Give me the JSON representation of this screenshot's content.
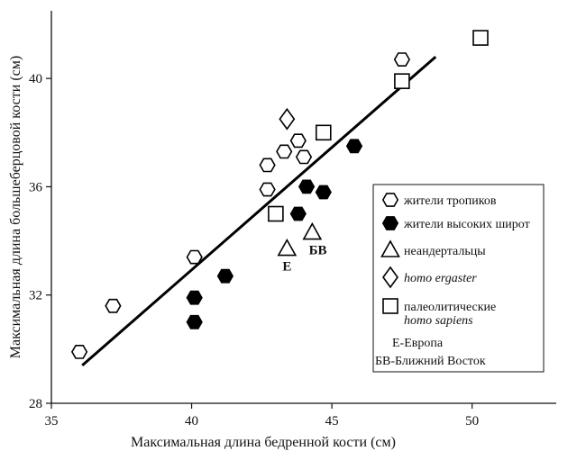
{
  "chart_data": {
    "type": "scatter",
    "xlabel": "Максимальная длина бедренной кости (см)",
    "ylabel": "Максимальная длина большеберцовой кости (см)",
    "xlim": [
      35,
      53
    ],
    "ylim": [
      28,
      42.5
    ],
    "x_ticks": [
      35,
      40,
      45,
      50
    ],
    "y_ticks": [
      28,
      32,
      36,
      40
    ],
    "x_tick_labels": [
      "35",
      "40",
      "45",
      "50"
    ],
    "y_tick_labels": [
      "28",
      "32",
      "36",
      "40"
    ],
    "grid": false,
    "legend_position": "right",
    "series": [
      {
        "name": "жители тропиков",
        "marker": "hexagon-open",
        "points": [
          [
            36.0,
            29.9
          ],
          [
            37.2,
            31.6
          ],
          [
            40.1,
            33.4
          ],
          [
            42.7,
            35.9
          ],
          [
            42.7,
            36.8
          ],
          [
            43.3,
            37.3
          ],
          [
            43.8,
            37.7
          ],
          [
            44.0,
            37.1
          ],
          [
            47.5,
            40.7
          ]
        ]
      },
      {
        "name": "жители высоких широт",
        "marker": "hexagon-filled",
        "points": [
          [
            40.1,
            31.0
          ],
          [
            40.1,
            31.9
          ],
          [
            41.2,
            32.7
          ],
          [
            43.8,
            35.0
          ],
          [
            44.1,
            36.0
          ],
          [
            44.7,
            35.8
          ],
          [
            45.8,
            37.5
          ]
        ]
      },
      {
        "name": "неандертальцы",
        "marker": "triangle-open",
        "points": [
          [
            43.4,
            33.7
          ],
          [
            44.3,
            34.3
          ]
        ]
      },
      {
        "name": "homo ergaster",
        "marker": "diamond-open",
        "points": [
          [
            43.4,
            38.5
          ]
        ]
      },
      {
        "name": "палеолитические homo sapiens",
        "marker": "square-open",
        "points": [
          [
            43.0,
            35.0
          ],
          [
            44.7,
            38.0
          ],
          [
            47.5,
            39.9
          ],
          [
            50.3,
            41.5
          ]
        ]
      }
    ],
    "legend": [
      {
        "marker": "hexagon-open",
        "label": "жители тропиков"
      },
      {
        "marker": "hexagon-filled",
        "label": "жители высоких широт"
      },
      {
        "marker": "triangle-open",
        "label": "неандертальцы"
      },
      {
        "marker": "diamond-open",
        "label": "homo ergaster",
        "italic": true
      },
      {
        "marker": "square-open",
        "label": "палеолитические",
        "label2": "homo sapiens"
      }
    ],
    "legend_notes": [
      "Е-Европа",
      "БВ-Ближний Восток"
    ],
    "annotations": [
      {
        "text": "Е",
        "x": 43.4,
        "y": 32.9
      },
      {
        "text": "БВ",
        "x": 44.5,
        "y": 33.5
      }
    ],
    "trend_line": {
      "x": [
        36.1,
        48.7
      ],
      "y": [
        29.4,
        40.8
      ]
    }
  }
}
